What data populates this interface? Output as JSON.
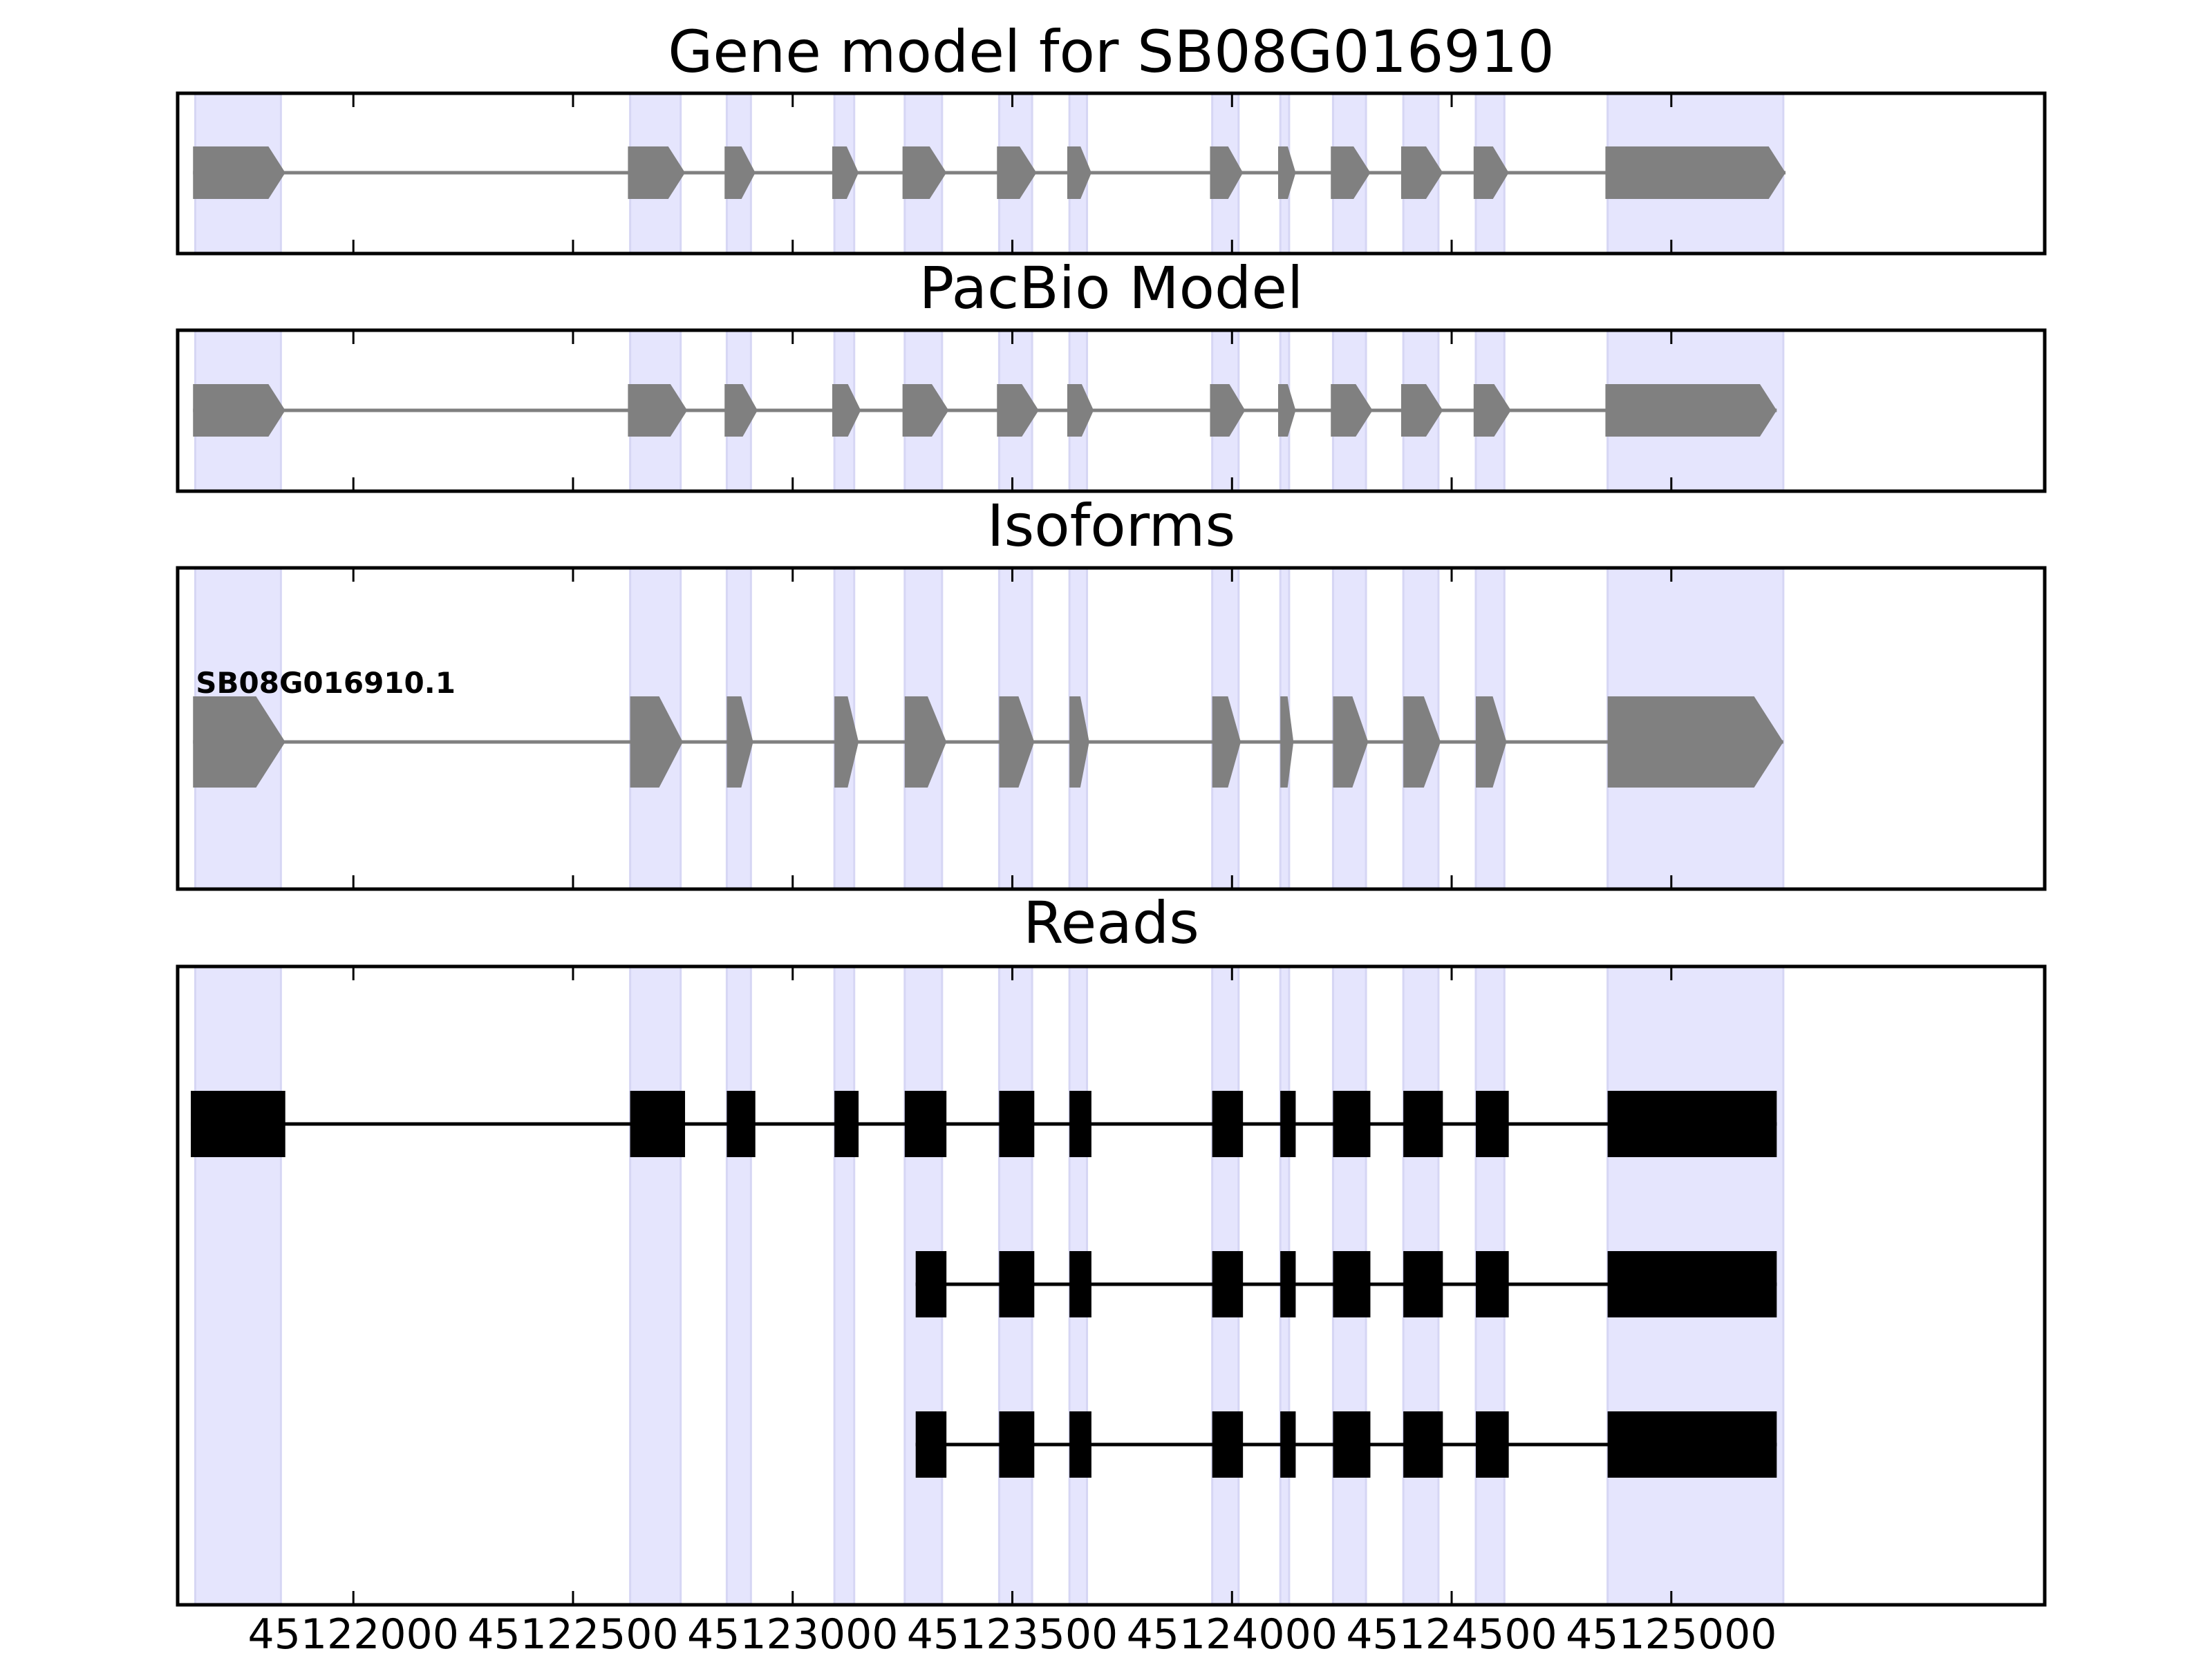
{
  "chart_data": {
    "type": "gene-track",
    "x_axis": {
      "range": [
        45121600,
        45125850
      ],
      "ticks": [
        45122000,
        45122500,
        45123000,
        45123500,
        45124000,
        45124500,
        45125000
      ],
      "tick_labels": [
        "45122000",
        "45122500",
        "45123000",
        "45123500",
        "45124000",
        "45124500",
        "45125000"
      ]
    },
    "highlight_color": "#e5e5fd",
    "highlight_regions": [
      [
        45121640,
        45121835
      ],
      [
        45122630,
        45122745
      ],
      [
        45122850,
        45122905
      ],
      [
        45123095,
        45123140
      ],
      [
        45123255,
        45123340
      ],
      [
        45123470,
        45123545
      ],
      [
        45123630,
        45123670
      ],
      [
        45123955,
        45124015
      ],
      [
        45124110,
        45124130
      ],
      [
        45124230,
        45124305
      ],
      [
        45124390,
        45124470
      ],
      [
        45124555,
        45124620
      ],
      [
        45124855,
        45125255
      ]
    ],
    "panels": [
      {
        "title": "Gene model for SB08G016910",
        "kind": "model",
        "color": "#808080",
        "features": [
          {
            "label": "",
            "exons": [
              [
                45121635,
                45121845
              ],
              [
                45122625,
                45122755
              ],
              [
                45122845,
                45122915
              ],
              [
                45123090,
                45123150
              ],
              [
                45123250,
                45123350
              ],
              [
                45123465,
                45123555
              ],
              [
                45123625,
                45123680
              ],
              [
                45123950,
                45124025
              ],
              [
                45124105,
                45124145
              ],
              [
                45124225,
                45124315
              ],
              [
                45124385,
                45124480
              ],
              [
                45124550,
                45124630
              ],
              [
                45124850,
                45125260
              ]
            ]
          }
        ]
      },
      {
        "title": "PacBio Model",
        "kind": "model",
        "color": "#808080",
        "features": [
          {
            "label": "",
            "exons": [
              [
                45121635,
                45121845
              ],
              [
                45122625,
                45122760
              ],
              [
                45122845,
                45122920
              ],
              [
                45123090,
                45123155
              ],
              [
                45123250,
                45123355
              ],
              [
                45123465,
                45123560
              ],
              [
                45123625,
                45123685
              ],
              [
                45123950,
                45124030
              ],
              [
                45124105,
                45124145
              ],
              [
                45124225,
                45124320
              ],
              [
                45124385,
                45124480
              ],
              [
                45124550,
                45124635
              ],
              [
                45124850,
                45125240
              ]
            ]
          }
        ]
      },
      {
        "title": "Isoforms",
        "kind": "model",
        "color": "#808080",
        "features": [
          {
            "label": "SB08G016910.1",
            "exons": [
              [
                45121635,
                45121845
              ],
              [
                45122630,
                45122750
              ],
              [
                45122850,
                45122910
              ],
              [
                45123095,
                45123150
              ],
              [
                45123255,
                45123350
              ],
              [
                45123470,
                45123550
              ],
              [
                45123630,
                45123675
              ],
              [
                45123955,
                45124020
              ],
              [
                45124110,
                45124140
              ],
              [
                45124230,
                45124310
              ],
              [
                45124390,
                45124475
              ],
              [
                45124555,
                45124625
              ],
              [
                45124855,
                45125255
              ]
            ]
          }
        ]
      },
      {
        "title": "Reads",
        "kind": "reads",
        "color": "#000000",
        "features": [
          {
            "label": "",
            "exons": [
              [
                45121630,
                45121845
              ],
              [
                45122630,
                45122755
              ],
              [
                45122850,
                45122915
              ],
              [
                45123095,
                45123150
              ],
              [
                45123255,
                45123350
              ],
              [
                45123470,
                45123550
              ],
              [
                45123630,
                45123680
              ],
              [
                45123955,
                45124025
              ],
              [
                45124110,
                45124145
              ],
              [
                45124230,
                45124315
              ],
              [
                45124390,
                45124480
              ],
              [
                45124555,
                45124630
              ],
              [
                45124855,
                45125240
              ]
            ]
          },
          {
            "label": "",
            "exons": [
              [
                45123280,
                45123350
              ],
              [
                45123470,
                45123550
              ],
              [
                45123630,
                45123680
              ],
              [
                45123955,
                45124025
              ],
              [
                45124110,
                45124145
              ],
              [
                45124230,
                45124315
              ],
              [
                45124390,
                45124480
              ],
              [
                45124555,
                45124630
              ],
              [
                45124855,
                45125240
              ]
            ]
          },
          {
            "label": "",
            "exons": [
              [
                45123280,
                45123350
              ],
              [
                45123470,
                45123550
              ],
              [
                45123630,
                45123680
              ],
              [
                45123955,
                45124025
              ],
              [
                45124110,
                45124145
              ],
              [
                45124230,
                45124315
              ],
              [
                45124390,
                45124480
              ],
              [
                45124555,
                45124630
              ],
              [
                45124855,
                45125240
              ]
            ]
          }
        ]
      }
    ]
  }
}
